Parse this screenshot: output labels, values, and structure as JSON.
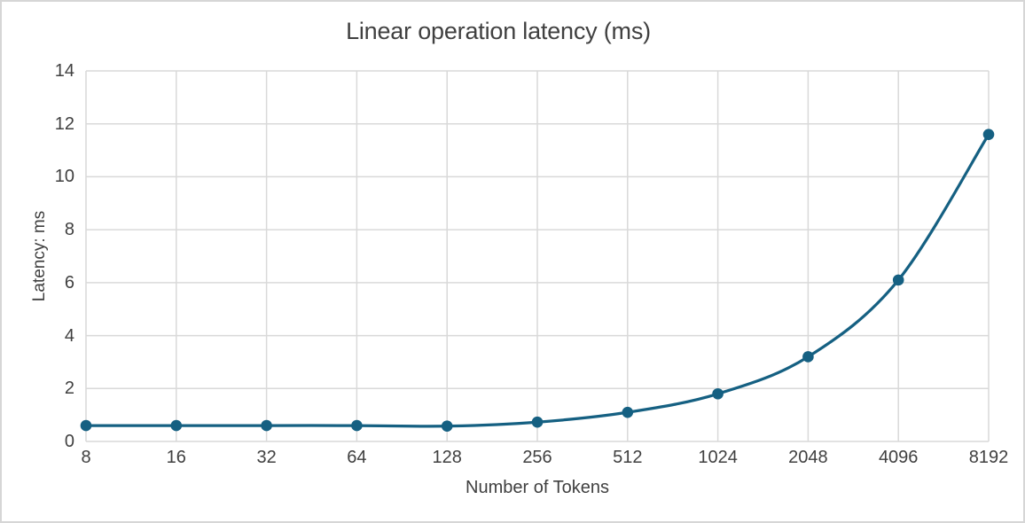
{
  "window": {
    "background": "#ffffff",
    "frame_border_color": "#d6d6d6"
  },
  "chart_data": {
    "type": "line",
    "title": "Linear operation latency (ms)",
    "xlabel": "Number of Tokens",
    "ylabel": "Latency: ms",
    "categories": [
      "8",
      "16",
      "32",
      "64",
      "128",
      "256",
      "512",
      "1024",
      "2048",
      "4096",
      "8192"
    ],
    "values": [
      0.6,
      0.6,
      0.6,
      0.6,
      0.58,
      0.73,
      1.1,
      1.8,
      3.2,
      6.1,
      11.6
    ],
    "ylim": [
      0,
      14
    ],
    "yticks": [
      0,
      2,
      4,
      6,
      8,
      10,
      12,
      14
    ],
    "grid": "horizontal-and-vertical",
    "legend": "none",
    "smooth_line": true,
    "marker": "circle",
    "line_color": "#156082",
    "marker_color": "#156082",
    "gridline_color": "#d9d9d9",
    "text_color": "#404040"
  }
}
